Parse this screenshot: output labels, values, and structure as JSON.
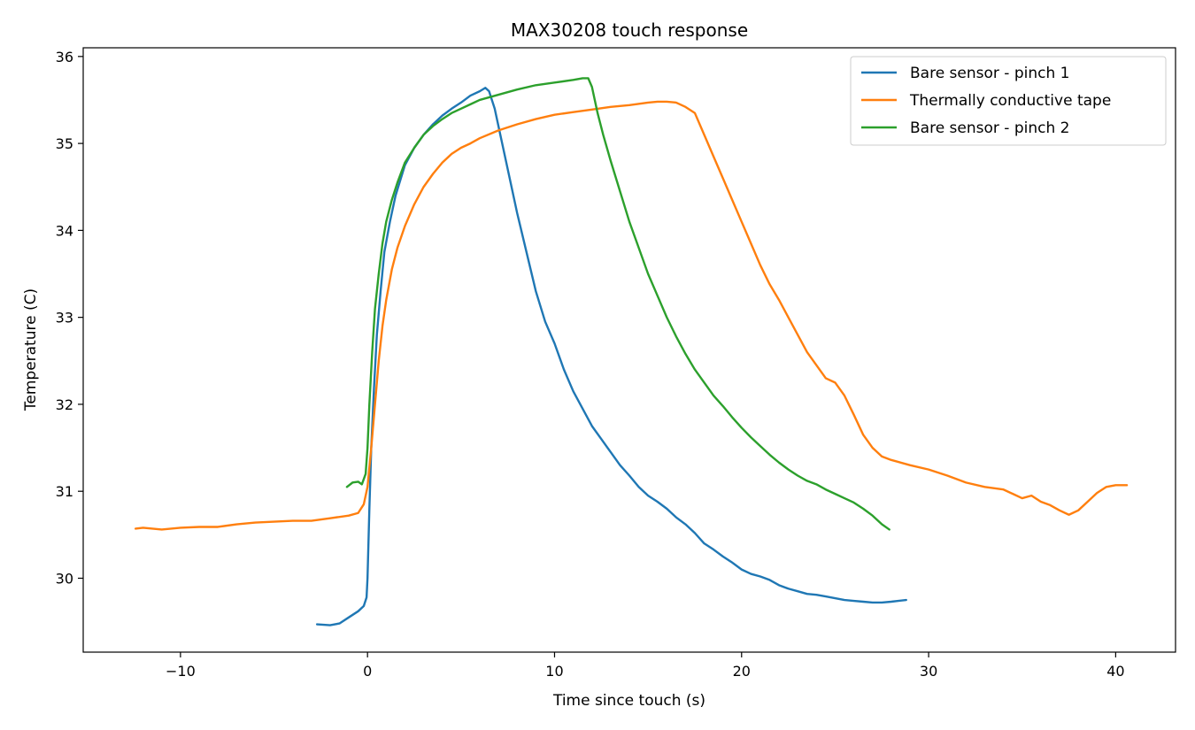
{
  "chart_data": {
    "type": "line",
    "title": "MAX30208 touch response",
    "xlabel": "Time since touch (s)",
    "ylabel": "Temperature (C)",
    "xlim": [
      -15.2,
      43.2
    ],
    "ylim": [
      29.15,
      36.1
    ],
    "xticks": [
      -10,
      0,
      10,
      20,
      30,
      40
    ],
    "xtick_labels": [
      "−10",
      "0",
      "10",
      "20",
      "30",
      "40"
    ],
    "yticks": [
      30,
      31,
      32,
      33,
      34,
      35,
      36
    ],
    "ytick_labels": [
      "30",
      "31",
      "32",
      "33",
      "34",
      "35",
      "36"
    ],
    "grid": false,
    "legend": "top-right",
    "series": [
      {
        "name": "Bare sensor - pinch 1",
        "color": "#1f77b4",
        "points": [
          [
            -2.7,
            29.47
          ],
          [
            -2.0,
            29.46
          ],
          [
            -1.5,
            29.48
          ],
          [
            -1.0,
            29.55
          ],
          [
            -0.5,
            29.62
          ],
          [
            -0.2,
            29.68
          ],
          [
            -0.05,
            29.78
          ],
          [
            0.0,
            30.0
          ],
          [
            0.1,
            30.8
          ],
          [
            0.2,
            31.5
          ],
          [
            0.35,
            32.2
          ],
          [
            0.5,
            32.8
          ],
          [
            0.7,
            33.3
          ],
          [
            0.9,
            33.75
          ],
          [
            1.2,
            34.1
          ],
          [
            1.5,
            34.4
          ],
          [
            2.0,
            34.75
          ],
          [
            2.5,
            34.95
          ],
          [
            3.0,
            35.1
          ],
          [
            3.5,
            35.22
          ],
          [
            4.0,
            35.32
          ],
          [
            4.5,
            35.4
          ],
          [
            5.0,
            35.47
          ],
          [
            5.5,
            35.55
          ],
          [
            6.0,
            35.6
          ],
          [
            6.3,
            35.64
          ],
          [
            6.5,
            35.6
          ],
          [
            6.8,
            35.4
          ],
          [
            7.2,
            35.0
          ],
          [
            7.6,
            34.6
          ],
          [
            8.0,
            34.2
          ],
          [
            8.5,
            33.75
          ],
          [
            9.0,
            33.3
          ],
          [
            9.5,
            32.95
          ],
          [
            10.0,
            32.7
          ],
          [
            10.5,
            32.4
          ],
          [
            11.0,
            32.15
          ],
          [
            11.5,
            31.95
          ],
          [
            12.0,
            31.75
          ],
          [
            12.5,
            31.6
          ],
          [
            13.0,
            31.45
          ],
          [
            13.5,
            31.3
          ],
          [
            14.0,
            31.18
          ],
          [
            14.5,
            31.05
          ],
          [
            15.0,
            30.95
          ],
          [
            15.5,
            30.88
          ],
          [
            16.0,
            30.8
          ],
          [
            16.5,
            30.7
          ],
          [
            17.0,
            30.62
          ],
          [
            17.5,
            30.52
          ],
          [
            18.0,
            30.4
          ],
          [
            18.5,
            30.33
          ],
          [
            19.0,
            30.25
          ],
          [
            19.5,
            30.18
          ],
          [
            20.0,
            30.1
          ],
          [
            20.5,
            30.05
          ],
          [
            21.0,
            30.02
          ],
          [
            21.5,
            29.98
          ],
          [
            22.0,
            29.92
          ],
          [
            22.5,
            29.88
          ],
          [
            23.0,
            29.85
          ],
          [
            23.5,
            29.82
          ],
          [
            24.0,
            29.81
          ],
          [
            24.5,
            29.79
          ],
          [
            25.0,
            29.77
          ],
          [
            25.5,
            29.75
          ],
          [
            26.0,
            29.74
          ],
          [
            26.5,
            29.73
          ],
          [
            27.0,
            29.72
          ],
          [
            27.5,
            29.72
          ],
          [
            28.0,
            29.73
          ],
          [
            28.8,
            29.75
          ]
        ]
      },
      {
        "name": "Thermally conductive tape",
        "color": "#ff7f0e",
        "points": [
          [
            -12.4,
            30.57
          ],
          [
            -12.0,
            30.58
          ],
          [
            -11.0,
            30.56
          ],
          [
            -10.0,
            30.58
          ],
          [
            -9.0,
            30.59
          ],
          [
            -8.0,
            30.59
          ],
          [
            -7.0,
            30.62
          ],
          [
            -6.0,
            30.64
          ],
          [
            -5.0,
            30.65
          ],
          [
            -4.0,
            30.66
          ],
          [
            -3.0,
            30.66
          ],
          [
            -2.0,
            30.69
          ],
          [
            -1.0,
            30.72
          ],
          [
            -0.5,
            30.75
          ],
          [
            -0.2,
            30.85
          ],
          [
            0.0,
            31.05
          ],
          [
            0.2,
            31.5
          ],
          [
            0.4,
            32.0
          ],
          [
            0.6,
            32.5
          ],
          [
            0.8,
            32.9
          ],
          [
            1.0,
            33.2
          ],
          [
            1.3,
            33.55
          ],
          [
            1.6,
            33.8
          ],
          [
            2.0,
            34.05
          ],
          [
            2.5,
            34.3
          ],
          [
            3.0,
            34.5
          ],
          [
            3.5,
            34.65
          ],
          [
            4.0,
            34.78
          ],
          [
            4.5,
            34.88
          ],
          [
            5.0,
            34.95
          ],
          [
            5.5,
            35.0
          ],
          [
            6.0,
            35.06
          ],
          [
            7.0,
            35.15
          ],
          [
            8.0,
            35.22
          ],
          [
            9.0,
            35.28
          ],
          [
            10.0,
            35.33
          ],
          [
            11.0,
            35.36
          ],
          [
            12.0,
            35.39
          ],
          [
            13.0,
            35.42
          ],
          [
            14.0,
            35.44
          ],
          [
            15.0,
            35.47
          ],
          [
            15.5,
            35.48
          ],
          [
            16.0,
            35.48
          ],
          [
            16.5,
            35.47
          ],
          [
            17.0,
            35.42
          ],
          [
            17.5,
            35.35
          ],
          [
            18.0,
            35.1
          ],
          [
            18.5,
            34.85
          ],
          [
            19.0,
            34.6
          ],
          [
            19.5,
            34.35
          ],
          [
            20.0,
            34.1
          ],
          [
            20.5,
            33.85
          ],
          [
            21.0,
            33.6
          ],
          [
            21.5,
            33.38
          ],
          [
            22.0,
            33.2
          ],
          [
            22.5,
            33.0
          ],
          [
            23.0,
            32.8
          ],
          [
            23.5,
            32.6
          ],
          [
            24.0,
            32.45
          ],
          [
            24.5,
            32.3
          ],
          [
            25.0,
            32.25
          ],
          [
            25.5,
            32.1
          ],
          [
            26.0,
            31.88
          ],
          [
            26.5,
            31.65
          ],
          [
            27.0,
            31.5
          ],
          [
            27.5,
            31.4
          ],
          [
            28.0,
            31.36
          ],
          [
            29.0,
            31.3
          ],
          [
            30.0,
            31.25
          ],
          [
            31.0,
            31.18
          ],
          [
            32.0,
            31.1
          ],
          [
            33.0,
            31.05
          ],
          [
            34.0,
            31.02
          ],
          [
            34.5,
            30.97
          ],
          [
            35.0,
            30.92
          ],
          [
            35.5,
            30.95
          ],
          [
            36.0,
            30.88
          ],
          [
            36.5,
            30.84
          ],
          [
            37.0,
            30.78
          ],
          [
            37.5,
            30.73
          ],
          [
            38.0,
            30.78
          ],
          [
            38.5,
            30.88
          ],
          [
            39.0,
            30.98
          ],
          [
            39.5,
            31.05
          ],
          [
            40.0,
            31.07
          ],
          [
            40.6,
            31.07
          ]
        ]
      },
      {
        "name": "Bare sensor - pinch 2",
        "color": "#2ca02c",
        "points": [
          [
            -1.1,
            31.05
          ],
          [
            -0.8,
            31.1
          ],
          [
            -0.5,
            31.11
          ],
          [
            -0.3,
            31.08
          ],
          [
            -0.1,
            31.2
          ],
          [
            0.0,
            31.5
          ],
          [
            0.1,
            32.0
          ],
          [
            0.25,
            32.6
          ],
          [
            0.4,
            33.1
          ],
          [
            0.6,
            33.5
          ],
          [
            0.8,
            33.85
          ],
          [
            1.0,
            34.1
          ],
          [
            1.3,
            34.35
          ],
          [
            1.6,
            34.55
          ],
          [
            2.0,
            34.78
          ],
          [
            2.5,
            34.95
          ],
          [
            3.0,
            35.1
          ],
          [
            3.5,
            35.2
          ],
          [
            4.0,
            35.28
          ],
          [
            4.5,
            35.35
          ],
          [
            5.0,
            35.4
          ],
          [
            5.5,
            35.45
          ],
          [
            6.0,
            35.5
          ],
          [
            7.0,
            35.56
          ],
          [
            8.0,
            35.62
          ],
          [
            9.0,
            35.67
          ],
          [
            10.0,
            35.7
          ],
          [
            11.0,
            35.73
          ],
          [
            11.5,
            35.75
          ],
          [
            11.8,
            35.75
          ],
          [
            12.0,
            35.65
          ],
          [
            12.3,
            35.35
          ],
          [
            12.6,
            35.1
          ],
          [
            13.0,
            34.8
          ],
          [
            13.5,
            34.45
          ],
          [
            14.0,
            34.1
          ],
          [
            14.5,
            33.8
          ],
          [
            15.0,
            33.5
          ],
          [
            15.5,
            33.25
          ],
          [
            16.0,
            33.0
          ],
          [
            16.5,
            32.78
          ],
          [
            17.0,
            32.58
          ],
          [
            17.5,
            32.4
          ],
          [
            18.0,
            32.25
          ],
          [
            18.5,
            32.1
          ],
          [
            19.0,
            31.98
          ],
          [
            19.5,
            31.85
          ],
          [
            20.0,
            31.73
          ],
          [
            20.5,
            31.62
          ],
          [
            21.0,
            31.52
          ],
          [
            21.5,
            31.42
          ],
          [
            22.0,
            31.33
          ],
          [
            22.5,
            31.25
          ],
          [
            23.0,
            31.18
          ],
          [
            23.5,
            31.12
          ],
          [
            24.0,
            31.08
          ],
          [
            24.5,
            31.02
          ],
          [
            25.0,
            30.97
          ],
          [
            25.5,
            30.92
          ],
          [
            26.0,
            30.87
          ],
          [
            26.5,
            30.8
          ],
          [
            27.0,
            30.72
          ],
          [
            27.5,
            30.62
          ],
          [
            27.9,
            30.56
          ]
        ]
      }
    ]
  }
}
